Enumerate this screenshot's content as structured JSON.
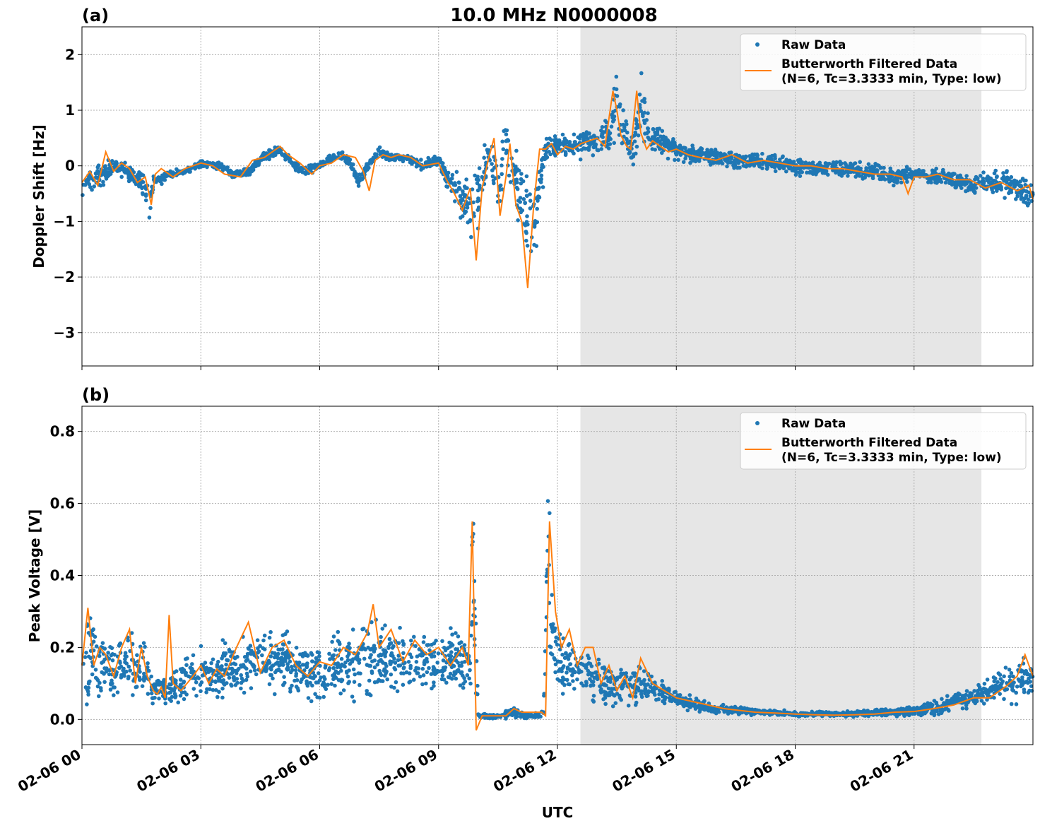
{
  "title": "10.0 MHz N0000008",
  "colors": {
    "raw": "#1f77b4",
    "filtered": "#ff7f0e",
    "night_shade": "#e6e6e6",
    "grid": "#b0b0b0"
  },
  "legend": {
    "raw": "Raw Data",
    "filtered_line1": "Butterworth Filtered Data",
    "filtered_line2": "(N=6, Tc=3.3333 min, Type: low)",
    "placement": "upper right"
  },
  "xaxis": {
    "label": "UTC",
    "range_hours": [
      0,
      24
    ],
    "ticks": [
      {
        "hour": 0,
        "label": "02-06 00"
      },
      {
        "hour": 3,
        "label": "02-06 03"
      },
      {
        "hour": 6,
        "label": "02-06 06"
      },
      {
        "hour": 9,
        "label": "02-06 09"
      },
      {
        "hour": 12,
        "label": "02-06 12"
      },
      {
        "hour": 15,
        "label": "02-06 15"
      },
      {
        "hour": 18,
        "label": "02-06 18"
      },
      {
        "hour": 21,
        "label": "02-06 21"
      }
    ]
  },
  "chart_data": [
    {
      "type": "scatter",
      "panel_label": "(a)",
      "ylabel": "Doppler Shift [Hz]",
      "ylim": [
        -3.6,
        2.5
      ],
      "yticks": [
        {
          "value": 2,
          "label": "2"
        },
        {
          "value": 1,
          "label": "1"
        },
        {
          "value": 0,
          "label": "0"
        },
        {
          "value": -1,
          "label": "−1"
        },
        {
          "value": -2,
          "label": "−2"
        },
        {
          "value": -3,
          "label": "−3"
        }
      ],
      "grid": true,
      "shaded_x_range": [
        12.58,
        22.7
      ],
      "series": [
        {
          "name": "Raw Data",
          "style": "dots",
          "x": [
            0,
            0.3,
            0.6,
            0.8,
            1.0,
            1.3,
            1.6,
            1.7,
            1.8,
            2.2,
            2.6,
            3.0,
            3.5,
            3.8,
            4.2,
            4.6,
            5.0,
            5.3,
            5.6,
            6.0,
            6.3,
            6.6,
            7.0,
            7.2,
            7.5,
            7.8,
            8.2,
            8.6,
            9.0,
            9.3,
            9.6,
            9.9,
            10.1,
            10.3,
            10.5,
            10.7,
            10.9,
            11.1,
            11.3,
            11.5,
            11.7,
            12.0,
            12.3,
            12.6,
            13.0,
            13.3,
            13.5,
            13.7,
            13.9,
            14.1,
            14.3,
            14.6,
            15.0,
            15.5,
            16.0,
            16.5,
            17.0,
            17.5,
            18.0,
            18.5,
            19.0,
            19.5,
            20.0,
            20.5,
            21.0,
            21.5,
            22.0,
            22.5,
            23.0,
            23.5,
            24.0
          ],
          "y_center": [
            -0.35,
            -0.2,
            -0.1,
            0.0,
            -0.05,
            -0.2,
            -0.4,
            -0.8,
            -0.3,
            -0.15,
            -0.1,
            0.05,
            0.0,
            -0.15,
            -0.1,
            0.15,
            0.3,
            0.05,
            -0.1,
            0.0,
            0.15,
            0.2,
            -0.3,
            0.0,
            0.25,
            0.15,
            0.15,
            0.0,
            0.1,
            -0.3,
            -0.6,
            -0.8,
            -0.2,
            0.3,
            -0.5,
            0.5,
            -0.3,
            -0.6,
            -1.0,
            -0.6,
            0.3,
            0.35,
            0.35,
            0.4,
            0.45,
            0.6,
            1.2,
            0.5,
            0.2,
            1.2,
            0.5,
            0.4,
            0.3,
            0.2,
            0.15,
            0.1,
            0.1,
            0.05,
            0.0,
            -0.05,
            -0.05,
            -0.1,
            -0.1,
            -0.2,
            -0.15,
            -0.2,
            -0.25,
            -0.35,
            -0.3,
            -0.35,
            -0.55
          ],
          "y_spread": [
            0.3,
            0.35,
            0.3,
            0.25,
            0.2,
            0.25,
            0.35,
            0.4,
            0.15,
            0.1,
            0.08,
            0.08,
            0.08,
            0.1,
            0.1,
            0.12,
            0.12,
            0.1,
            0.12,
            0.1,
            0.1,
            0.12,
            0.2,
            0.12,
            0.12,
            0.1,
            0.1,
            0.12,
            0.15,
            0.3,
            0.6,
            0.9,
            0.6,
            0.5,
            0.9,
            0.6,
            0.8,
            1.0,
            1.2,
            0.8,
            0.4,
            0.3,
            0.2,
            0.3,
            0.3,
            0.5,
            0.8,
            0.5,
            0.3,
            0.8,
            0.4,
            0.3,
            0.25,
            0.2,
            0.2,
            0.2,
            0.2,
            0.2,
            0.2,
            0.2,
            0.2,
            0.2,
            0.2,
            0.2,
            0.2,
            0.2,
            0.2,
            0.25,
            0.25,
            0.3,
            0.35
          ]
        },
        {
          "name": "Butterworth Filtered Data (N=6, Tc=3.3333 min, Type: low)",
          "style": "line",
          "x": [
            0,
            0.2,
            0.4,
            0.6,
            0.8,
            1.0,
            1.2,
            1.4,
            1.6,
            1.75,
            1.85,
            2.0,
            2.3,
            2.6,
            3.0,
            3.3,
            3.6,
            4.0,
            4.3,
            4.6,
            5.0,
            5.2,
            5.5,
            5.8,
            6.0,
            6.3,
            6.6,
            6.9,
            7.1,
            7.25,
            7.4,
            7.6,
            7.8,
            8.0,
            8.3,
            8.6,
            9.0,
            9.2,
            9.4,
            9.6,
            9.8,
            9.95,
            10.1,
            10.25,
            10.4,
            10.55,
            10.7,
            10.8,
            10.95,
            11.1,
            11.25,
            11.4,
            11.55,
            11.7,
            11.85,
            12.0,
            12.2,
            12.4,
            12.6,
            12.8,
            13.0,
            13.2,
            13.4,
            13.5,
            13.6,
            13.75,
            13.85,
            14.0,
            14.1,
            14.25,
            14.4,
            14.6,
            14.8,
            15.0,
            15.3,
            15.6,
            16.0,
            16.4,
            16.8,
            17.2,
            17.6,
            18.0,
            18.4,
            18.8,
            19.2,
            19.6,
            20.0,
            20.4,
            20.7,
            20.85,
            21.0,
            21.3,
            21.6,
            22.0,
            22.4,
            22.8,
            23.2,
            23.6,
            23.9,
            24.0
          ],
          "y": [
            -0.3,
            -0.1,
            -0.35,
            0.25,
            -0.1,
            0.05,
            -0.05,
            -0.3,
            -0.2,
            -0.7,
            -0.15,
            -0.05,
            -0.2,
            -0.05,
            0.05,
            0.0,
            -0.15,
            -0.2,
            0.1,
            0.15,
            0.35,
            0.2,
            0.05,
            -0.15,
            0.0,
            0.05,
            0.2,
            0.15,
            -0.1,
            -0.45,
            0.1,
            0.2,
            0.15,
            0.2,
            0.15,
            0.0,
            0.05,
            -0.25,
            -0.5,
            -0.8,
            -0.4,
            -1.7,
            -0.4,
            0.1,
            0.5,
            -0.9,
            -0.2,
            0.4,
            -0.7,
            -1.0,
            -2.2,
            -0.7,
            0.3,
            0.3,
            0.4,
            0.2,
            0.35,
            0.3,
            0.4,
            0.45,
            0.5,
            0.35,
            1.35,
            1.0,
            0.55,
            0.35,
            0.3,
            1.35,
            0.6,
            0.3,
            0.45,
            0.35,
            0.25,
            0.3,
            0.2,
            0.15,
            0.1,
            0.2,
            0.05,
            0.1,
            0.05,
            0.0,
            0.0,
            -0.05,
            -0.05,
            -0.1,
            -0.15,
            -0.15,
            -0.2,
            -0.5,
            -0.2,
            -0.2,
            -0.15,
            -0.25,
            -0.25,
            -0.4,
            -0.3,
            -0.45,
            -0.35,
            -0.6
          ]
        }
      ]
    },
    {
      "type": "scatter",
      "panel_label": "(b)",
      "ylabel": "Peak Voltage [V]",
      "ylim": [
        -0.07,
        0.87
      ],
      "yticks": [
        {
          "value": 0.8,
          "label": "0.8"
        },
        {
          "value": 0.6,
          "label": "0.6"
        },
        {
          "value": 0.4,
          "label": "0.4"
        },
        {
          "value": 0.2,
          "label": "0.2"
        },
        {
          "value": 0.0,
          "label": "0.0"
        }
      ],
      "grid": true,
      "shaded_x_range": [
        12.58,
        22.7
      ],
      "series": [
        {
          "name": "Raw Data",
          "style": "dots",
          "x": [
            0,
            0.2,
            0.4,
            0.6,
            0.8,
            1.0,
            1.2,
            1.4,
            1.6,
            1.8,
            2.0,
            2.2,
            2.5,
            2.8,
            3.0,
            3.3,
            3.6,
            4.0,
            4.4,
            4.8,
            5.2,
            5.6,
            6.0,
            6.4,
            6.8,
            7.2,
            7.5,
            7.8,
            8.2,
            8.6,
            9.0,
            9.4,
            9.8,
            9.85,
            9.9,
            10.0,
            10.3,
            10.6,
            10.9,
            11.2,
            11.5,
            11.65,
            11.75,
            11.9,
            12.1,
            12.3,
            12.6,
            12.9,
            13.2,
            13.5,
            13.8,
            14.1,
            14.4,
            14.8,
            15.2,
            15.6,
            16.0,
            16.5,
            17.0,
            17.5,
            18.0,
            18.5,
            19.0,
            19.5,
            20.0,
            20.5,
            21.0,
            21.5,
            22.0,
            22.5,
            23.0,
            23.5,
            24.0
          ],
          "y_center": [
            0.13,
            0.2,
            0.15,
            0.15,
            0.12,
            0.15,
            0.17,
            0.14,
            0.15,
            0.08,
            0.09,
            0.08,
            0.1,
            0.12,
            0.13,
            0.12,
            0.14,
            0.14,
            0.17,
            0.16,
            0.16,
            0.14,
            0.13,
            0.15,
            0.15,
            0.18,
            0.17,
            0.16,
            0.16,
            0.17,
            0.15,
            0.17,
            0.15,
            0.4,
            0.3,
            0.01,
            0.01,
            0.01,
            0.02,
            0.01,
            0.01,
            0.02,
            0.4,
            0.2,
            0.15,
            0.15,
            0.14,
            0.12,
            0.1,
            0.09,
            0.1,
            0.1,
            0.08,
            0.07,
            0.05,
            0.04,
            0.03,
            0.025,
            0.02,
            0.02,
            0.015,
            0.015,
            0.015,
            0.015,
            0.02,
            0.02,
            0.025,
            0.03,
            0.05,
            0.06,
            0.08,
            0.1,
            0.12
          ],
          "y_spread": [
            0.12,
            0.2,
            0.12,
            0.12,
            0.1,
            0.12,
            0.12,
            0.1,
            0.1,
            0.06,
            0.06,
            0.06,
            0.08,
            0.08,
            0.08,
            0.08,
            0.1,
            0.1,
            0.1,
            0.12,
            0.12,
            0.1,
            0.1,
            0.12,
            0.12,
            0.15,
            0.15,
            0.12,
            0.12,
            0.12,
            0.1,
            0.12,
            0.1,
            0.35,
            0.25,
            0.01,
            0.01,
            0.01,
            0.02,
            0.01,
            0.01,
            0.02,
            0.35,
            0.15,
            0.12,
            0.1,
            0.1,
            0.08,
            0.08,
            0.07,
            0.07,
            0.07,
            0.05,
            0.04,
            0.03,
            0.025,
            0.02,
            0.015,
            0.012,
            0.01,
            0.01,
            0.01,
            0.01,
            0.01,
            0.012,
            0.015,
            0.02,
            0.025,
            0.03,
            0.04,
            0.05,
            0.07,
            0.12
          ]
        },
        {
          "name": "Butterworth Filtered Data (N=6, Tc=3.3333 min, Type: low)",
          "style": "line",
          "x": [
            0,
            0.15,
            0.3,
            0.45,
            0.6,
            0.8,
            1.0,
            1.2,
            1.35,
            1.5,
            1.65,
            1.8,
            1.9,
            2.0,
            2.1,
            2.2,
            2.3,
            2.5,
            2.8,
            3.0,
            3.2,
            3.4,
            3.6,
            3.9,
            4.2,
            4.5,
            4.8,
            5.1,
            5.4,
            5.7,
            6.0,
            6.3,
            6.6,
            6.9,
            7.2,
            7.35,
            7.5,
            7.8,
            8.1,
            8.4,
            8.7,
            9.0,
            9.3,
            9.6,
            9.75,
            9.85,
            9.95,
            10.1,
            10.4,
            10.7,
            10.9,
            11.1,
            11.4,
            11.6,
            11.7,
            11.8,
            11.95,
            12.1,
            12.3,
            12.5,
            12.7,
            12.9,
            13.1,
            13.3,
            13.5,
            13.7,
            13.9,
            14.1,
            14.4,
            14.7,
            15.0,
            15.4,
            15.8,
            16.2,
            16.6,
            17.0,
            17.5,
            18.0,
            18.5,
            19.0,
            19.5,
            20.0,
            20.5,
            21.0,
            21.5,
            22.0,
            22.5,
            22.9,
            23.3,
            23.6,
            23.8,
            24.0
          ],
          "y": [
            0.15,
            0.31,
            0.15,
            0.2,
            0.18,
            0.12,
            0.2,
            0.25,
            0.1,
            0.2,
            0.12,
            0.08,
            0.07,
            0.09,
            0.06,
            0.29,
            0.1,
            0.08,
            0.12,
            0.15,
            0.1,
            0.14,
            0.12,
            0.2,
            0.27,
            0.13,
            0.2,
            0.22,
            0.15,
            0.12,
            0.16,
            0.15,
            0.2,
            0.18,
            0.24,
            0.32,
            0.2,
            0.25,
            0.16,
            0.22,
            0.18,
            0.2,
            0.15,
            0.2,
            0.15,
            0.55,
            -0.03,
            0.01,
            0.01,
            0.01,
            0.03,
            0.02,
            0.02,
            0.02,
            0.01,
            0.55,
            0.3,
            0.2,
            0.25,
            0.15,
            0.2,
            0.2,
            0.1,
            0.15,
            0.08,
            0.12,
            0.06,
            0.17,
            0.1,
            0.08,
            0.06,
            0.05,
            0.04,
            0.03,
            0.025,
            0.02,
            0.018,
            0.015,
            0.013,
            0.012,
            0.013,
            0.015,
            0.02,
            0.022,
            0.03,
            0.04,
            0.06,
            0.06,
            0.09,
            0.12,
            0.18,
            0.12
          ]
        }
      ]
    }
  ]
}
